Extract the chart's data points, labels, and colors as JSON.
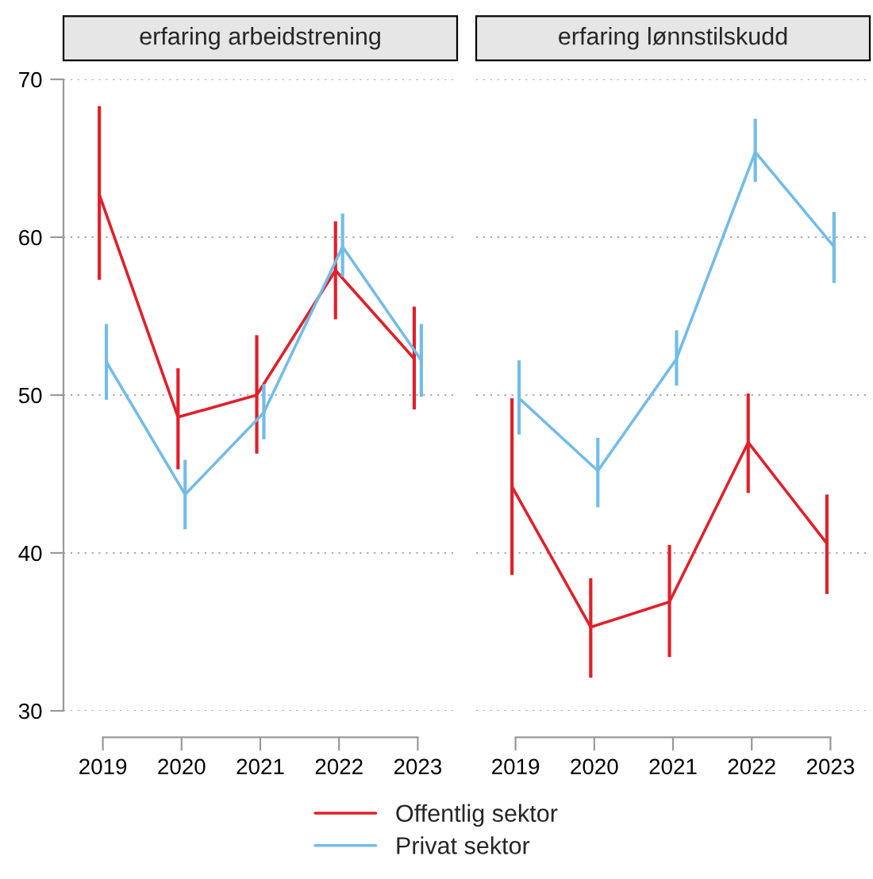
{
  "chart_data": [
    {
      "type": "line",
      "title": "erfaring arbeidstrening",
      "categories": [
        "2019",
        "2020",
        "2021",
        "2022",
        "2023"
      ],
      "ylim": [
        30,
        70
      ],
      "yticks": [
        30,
        40,
        50,
        60,
        70
      ],
      "grid": "y",
      "legend": "bottom",
      "marker": "none",
      "line_style": "solid",
      "series": [
        {
          "name": "Offentlig sektor",
          "color": "#e0202a",
          "values": [
            62.7,
            48.6,
            50.0,
            57.9,
            52.3
          ],
          "errors": [
            [
              57.3,
              68.3
            ],
            [
              45.3,
              51.7
            ],
            [
              46.3,
              53.8
            ],
            [
              54.8,
              61.0
            ],
            [
              49.1,
              55.6
            ]
          ]
        },
        {
          "name": "Privat sektor",
          "color": "#72bce8",
          "values": [
            52.1,
            43.7,
            48.9,
            59.4,
            52.2
          ],
          "errors": [
            [
              49.7,
              54.5
            ],
            [
              41.5,
              45.9
            ],
            [
              47.2,
              50.7
            ],
            [
              57.5,
              61.5
            ],
            [
              49.9,
              54.5
            ]
          ]
        }
      ]
    },
    {
      "type": "line",
      "title": "erfaring lønnstilskudd",
      "categories": [
        "2019",
        "2020",
        "2021",
        "2022",
        "2023"
      ],
      "ylim": [
        30,
        70
      ],
      "yticks": [
        30,
        40,
        50,
        60,
        70
      ],
      "grid": "y",
      "tick_labels": "x",
      "marker": "none",
      "line_style": "solid",
      "series": [
        {
          "name": "Offentlig sektor",
          "color": "#e0202a",
          "values": [
            44.2,
            35.3,
            36.9,
            47.0,
            40.6
          ],
          "errors": [
            [
              38.6,
              49.8
            ],
            [
              32.1,
              38.4
            ],
            [
              33.4,
              40.5
            ],
            [
              43.8,
              50.1
            ],
            [
              37.4,
              43.7
            ]
          ]
        },
        {
          "name": "Privat sektor",
          "color": "#72bce8",
          "values": [
            49.8,
            45.2,
            52.3,
            65.4,
            59.4
          ],
          "errors": [
            [
              47.5,
              52.2
            ],
            [
              42.9,
              47.3
            ],
            [
              50.6,
              54.1
            ],
            [
              63.5,
              67.5
            ],
            [
              57.1,
              61.6
            ]
          ]
        }
      ]
    }
  ]
}
